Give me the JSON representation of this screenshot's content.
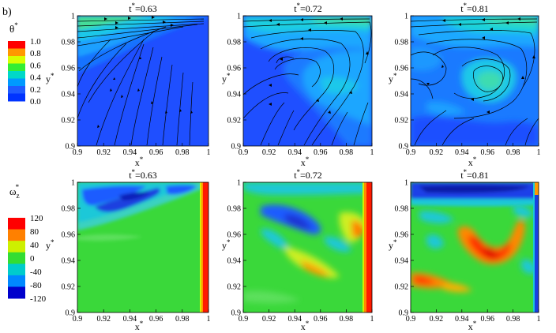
{
  "figure": {
    "panel_label": "b)",
    "top_colorbar": {
      "title": "θ",
      "superscript": "*",
      "ticks": [
        "1.0",
        "0.8",
        "0.6",
        "0.4",
        "0.2",
        "0.0"
      ],
      "colors": [
        "#ff0000",
        "#ff9900",
        "#d8ff00",
        "#33ee33",
        "#00d8c8",
        "#0099ff",
        "#1f5bff",
        "#0033ff"
      ]
    },
    "bottom_colorbar": {
      "title": "ω",
      "subscript": "z",
      "superscript": "*",
      "ticks": [
        "120",
        "80",
        "40",
        "0",
        "-40",
        "-80",
        "-120"
      ],
      "colors": [
        "#ff0000",
        "#ff8000",
        "#cdf000",
        "#33dd33",
        "#00cccc",
        "#0088ff",
        "#0000cc"
      ]
    },
    "x_tick_labels": [
      "0.9",
      "0.92",
      "0.94",
      "0.96",
      "0.98",
      "1"
    ],
    "y_tick_labels": [
      "1",
      "0.98",
      "0.96",
      "0.94",
      "0.92",
      "0.9"
    ],
    "axis_labels": {
      "x": "x",
      "y": "y",
      "superscript": "*"
    },
    "panels": [
      {
        "title_var": "t",
        "title_value": "=0.63",
        "field": "theta",
        "time": 0.63
      },
      {
        "title_var": "t",
        "title_value": "=0.72",
        "field": "theta",
        "time": 0.72
      },
      {
        "title_var": "t",
        "title_value": "=0.81",
        "field": "theta",
        "time": 0.81
      },
      {
        "title_var": "t",
        "title_value": "=0.63",
        "field": "vorticity",
        "time": 0.63
      },
      {
        "title_var": "t",
        "title_value": "=0.72",
        "field": "vorticity",
        "time": 0.72
      },
      {
        "title_var": "t",
        "title_value": "=0.81",
        "field": "vorticity",
        "time": 0.81
      }
    ]
  },
  "chart_data": [
    {
      "type": "heatmap",
      "title": "t*=0.63",
      "xlabel": "x*",
      "ylabel": "y*",
      "xlim": [
        0.9,
        1.0
      ],
      "ylim": [
        0.9,
        1.0
      ],
      "variable": "θ*",
      "colorbar_range": [
        0.0,
        1.0
      ]
    },
    {
      "type": "heatmap",
      "title": "t*=0.72",
      "xlabel": "x*",
      "ylabel": "y*",
      "xlim": [
        0.9,
        1.0
      ],
      "ylim": [
        0.9,
        1.0
      ],
      "variable": "θ*",
      "colorbar_range": [
        0.0,
        1.0
      ]
    },
    {
      "type": "heatmap",
      "title": "t*=0.81",
      "xlabel": "x*",
      "ylabel": "y*",
      "xlim": [
        0.9,
        1.0
      ],
      "ylim": [
        0.9,
        1.0
      ],
      "variable": "θ*",
      "colorbar_range": [
        0.0,
        1.0
      ]
    },
    {
      "type": "heatmap",
      "title": "t*=0.63",
      "xlabel": "x*",
      "ylabel": "y*",
      "xlim": [
        0.9,
        1.0
      ],
      "ylim": [
        0.9,
        1.0
      ],
      "variable": "ωz*",
      "colorbar_range": [
        -120,
        120
      ]
    },
    {
      "type": "heatmap",
      "title": "t*=0.72",
      "xlabel": "x*",
      "ylabel": "y*",
      "xlim": [
        0.9,
        1.0
      ],
      "ylim": [
        0.9,
        1.0
      ],
      "variable": "ωz*",
      "colorbar_range": [
        -120,
        120
      ]
    },
    {
      "type": "heatmap",
      "title": "t*=0.81",
      "xlabel": "x*",
      "ylabel": "y*",
      "xlim": [
        0.9,
        1.0
      ],
      "ylim": [
        0.9,
        1.0
      ],
      "variable": "ωz*",
      "colorbar_range": [
        -120,
        120
      ]
    }
  ]
}
